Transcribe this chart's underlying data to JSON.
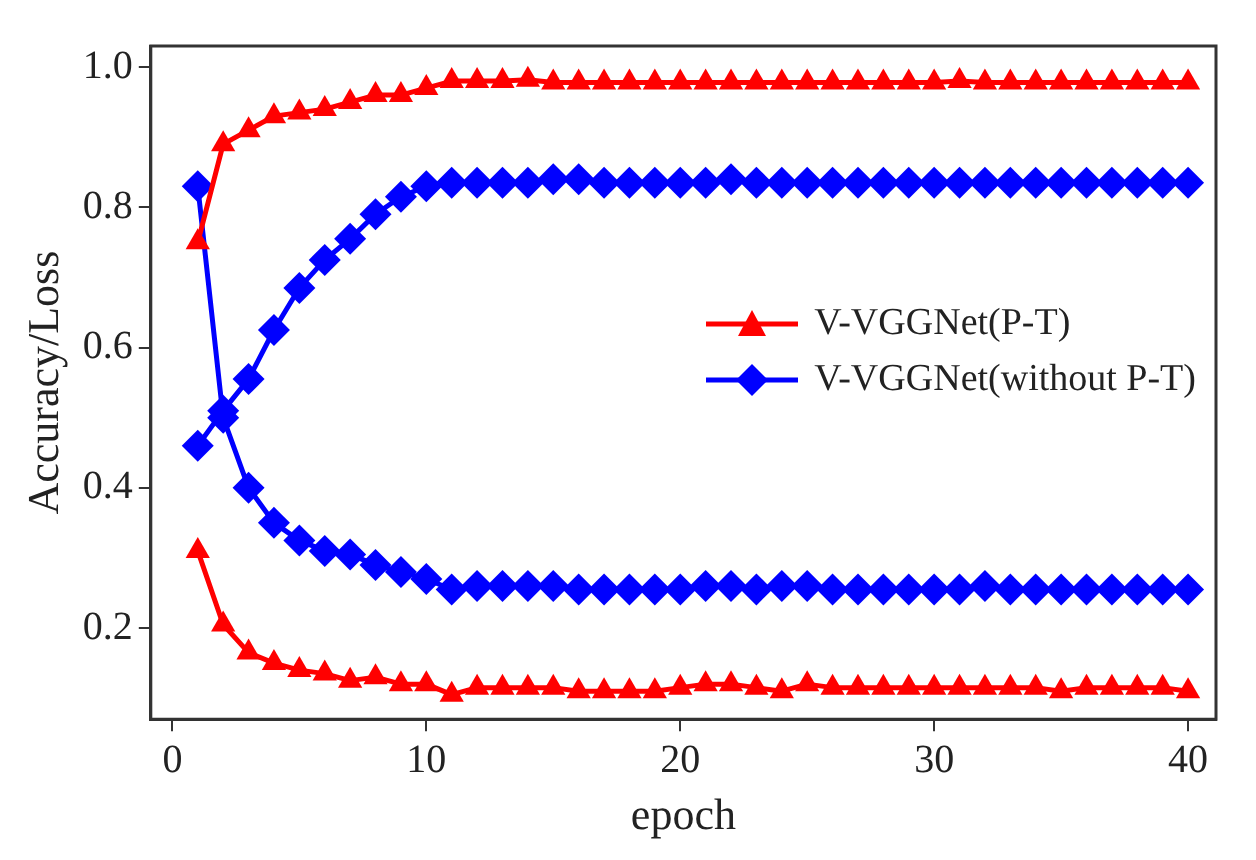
{
  "chart_data": {
    "type": "line",
    "xlabel": "epoch",
    "ylabel": "Accuracy/Loss",
    "xlim": [
      -0.85,
      41.1
    ],
    "xticks": [
      0,
      10,
      20,
      30,
      40
    ],
    "ylim": [
      0.07,
      1.03
    ],
    "yticks": [
      0.2,
      0.4,
      0.6,
      0.8,
      {
        "value": 1,
        "label": "1.0"
      }
    ],
    "grid": false,
    "legend": "right",
    "line_style": "solid",
    "series": [
      {
        "name": "V-VGGNet(P-T)",
        "color": "#ff0000",
        "marker": "triangle",
        "x": [
          1,
          2,
          3,
          4,
          5,
          6,
          7,
          8,
          9,
          10,
          11,
          12,
          13,
          14,
          15,
          16,
          17,
          18,
          19,
          20,
          21,
          22,
          23,
          24,
          25,
          26,
          27,
          28,
          29,
          30,
          31,
          32,
          33,
          34,
          35,
          36,
          37,
          38,
          39,
          40
        ],
        "values": [
          0.75,
          0.89,
          0.91,
          0.93,
          0.935,
          0.94,
          0.95,
          0.96,
          0.96,
          0.97,
          0.98,
          0.98,
          0.98,
          0.982,
          0.978,
          0.978,
          0.978,
          0.978,
          0.978,
          0.978,
          0.978,
          0.978,
          0.978,
          0.978,
          0.978,
          0.978,
          0.978,
          0.978,
          0.978,
          0.978,
          0.98,
          0.978,
          0.978,
          0.978,
          0.978,
          0.978,
          0.978,
          0.978,
          0.978,
          0.978
        ]
      },
      {
        "name": "V-VGGNet(without P-T)",
        "color": "#0000ff",
        "marker": "diamond",
        "x": [
          1,
          2,
          3,
          4,
          5,
          6,
          7,
          8,
          9,
          10,
          11,
          12,
          13,
          14,
          15,
          16,
          17,
          18,
          19,
          20,
          21,
          22,
          23,
          24,
          25,
          26,
          27,
          28,
          29,
          30,
          31,
          32,
          33,
          34,
          35,
          36,
          37,
          38,
          39,
          40
        ],
        "values": [
          0.46,
          0.51,
          0.555,
          0.625,
          0.685,
          0.725,
          0.755,
          0.79,
          0.815,
          0.83,
          0.835,
          0.835,
          0.835,
          0.835,
          0.84,
          0.84,
          0.835,
          0.835,
          0.835,
          0.835,
          0.835,
          0.84,
          0.835,
          0.835,
          0.835,
          0.835,
          0.835,
          0.835,
          0.835,
          0.835,
          0.835,
          0.835,
          0.835,
          0.835,
          0.835,
          0.835,
          0.835,
          0.835,
          0.835,
          0.835
        ]
      },
      {
        "color": "#ff0000",
        "marker": "triangle",
        "x": [
          1,
          2,
          3,
          4,
          5,
          6,
          7,
          8,
          9,
          10,
          11,
          12,
          13,
          14,
          15,
          16,
          17,
          18,
          19,
          20,
          21,
          22,
          23,
          24,
          25,
          26,
          27,
          28,
          29,
          30,
          31,
          32,
          33,
          34,
          35,
          36,
          37,
          38,
          39,
          40
        ],
        "values": [
          0.31,
          0.205,
          0.165,
          0.15,
          0.14,
          0.135,
          0.125,
          0.13,
          0.12,
          0.12,
          0.105,
          0.115,
          0.115,
          0.115,
          0.115,
          0.11,
          0.11,
          0.11,
          0.11,
          0.115,
          0.12,
          0.12,
          0.115,
          0.11,
          0.12,
          0.115,
          0.115,
          0.115,
          0.115,
          0.115,
          0.115,
          0.115,
          0.115,
          0.115,
          0.11,
          0.115,
          0.115,
          0.115,
          0.115,
          0.11
        ]
      },
      {
        "color": "#0000ff",
        "marker": "diamond",
        "x": [
          1,
          2,
          3,
          4,
          5,
          6,
          7,
          8,
          9,
          10,
          11,
          12,
          13,
          14,
          15,
          16,
          17,
          18,
          19,
          20,
          21,
          22,
          23,
          24,
          25,
          26,
          27,
          28,
          29,
          30,
          31,
          32,
          33,
          34,
          35,
          36,
          37,
          38,
          39,
          40
        ],
        "values": [
          0.83,
          0.5,
          0.4,
          0.35,
          0.325,
          0.31,
          0.305,
          0.29,
          0.28,
          0.27,
          0.255,
          0.26,
          0.26,
          0.26,
          0.26,
          0.255,
          0.255,
          0.255,
          0.255,
          0.255,
          0.26,
          0.26,
          0.255,
          0.26,
          0.26,
          0.255,
          0.255,
          0.255,
          0.255,
          0.255,
          0.255,
          0.26,
          0.255,
          0.255,
          0.255,
          0.255,
          0.255,
          0.255,
          0.255,
          0.255
        ]
      }
    ]
  }
}
